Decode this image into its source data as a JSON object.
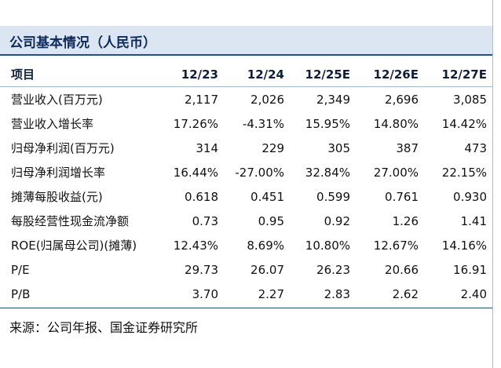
{
  "header": {
    "title": "公司基本情况（人民币）"
  },
  "table": {
    "columns": [
      "项目",
      "12/23",
      "12/24",
      "12/25E",
      "12/26E",
      "12/27E"
    ],
    "rows": [
      [
        "营业收入(百万元)",
        "2,117",
        "2,026",
        "2,349",
        "2,696",
        "3,085"
      ],
      [
        "营业收入增长率",
        "17.26%",
        "-4.31%",
        "15.95%",
        "14.80%",
        "14.42%"
      ],
      [
        "归母净利润(百万元)",
        "314",
        "229",
        "305",
        "387",
        "473"
      ],
      [
        "归母净利润增长率",
        "16.44%",
        "-27.00%",
        "32.84%",
        "27.00%",
        "22.15%"
      ],
      [
        "摊薄每股收益(元)",
        "0.618",
        "0.451",
        "0.599",
        "0.761",
        "0.930"
      ],
      [
        "每股经营性现金流净额",
        "0.73",
        "0.95",
        "0.92",
        "1.26",
        "1.41"
      ],
      [
        "ROE(归属母公司)(摊薄)",
        "12.43%",
        "8.69%",
        "10.80%",
        "12.67%",
        "14.16%"
      ],
      [
        "P/E",
        "29.73",
        "26.07",
        "26.23",
        "20.66",
        "16.91"
      ],
      [
        "P/B",
        "3.70",
        "2.27",
        "2.83",
        "2.62",
        "2.40"
      ]
    ]
  },
  "source": "来源：公司年报、国金证券研究所"
}
